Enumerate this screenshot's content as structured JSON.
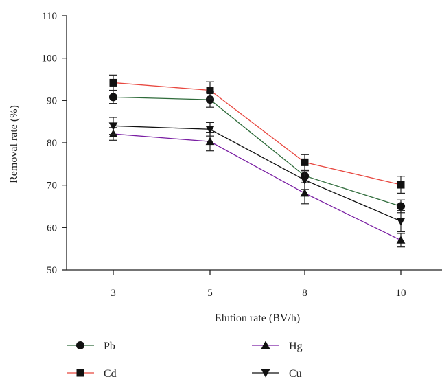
{
  "chart_data": {
    "type": "line",
    "title": "",
    "xlabel": "Elution rate (BV/h)",
    "ylabel": "Removal rate (%)",
    "categories": [
      "3",
      "5",
      "8",
      "10"
    ],
    "ylim": [
      50,
      110
    ],
    "yticks": [
      50,
      60,
      70,
      80,
      90,
      100,
      110
    ],
    "grid": false,
    "legend_placement": "bottom",
    "series": [
      {
        "name": "Pb",
        "color": "#2e6b3a",
        "marker": "circle",
        "values": [
          90.8,
          90.2,
          72.2,
          65.0
        ],
        "errors": [
          1.5,
          1.8,
          1.2,
          1.5
        ]
      },
      {
        "name": "Cd",
        "color": "#e8473f",
        "marker": "square",
        "values": [
          94.2,
          92.4,
          75.4,
          70.1
        ],
        "errors": [
          1.8,
          2.0,
          1.8,
          2.0
        ]
      },
      {
        "name": "Hg",
        "color": "#7a1fa3",
        "marker": "triangle-up",
        "values": [
          82.1,
          80.3,
          68.1,
          57.0
        ],
        "errors": [
          1.5,
          2.2,
          2.5,
          1.6
        ]
      },
      {
        "name": "Cu",
        "color": "#111111",
        "marker": "triangle-down",
        "values": [
          84.0,
          83.2,
          71.2,
          61.5
        ],
        "errors": [
          2.0,
          1.6,
          2.2,
          2.5
        ]
      }
    ]
  }
}
